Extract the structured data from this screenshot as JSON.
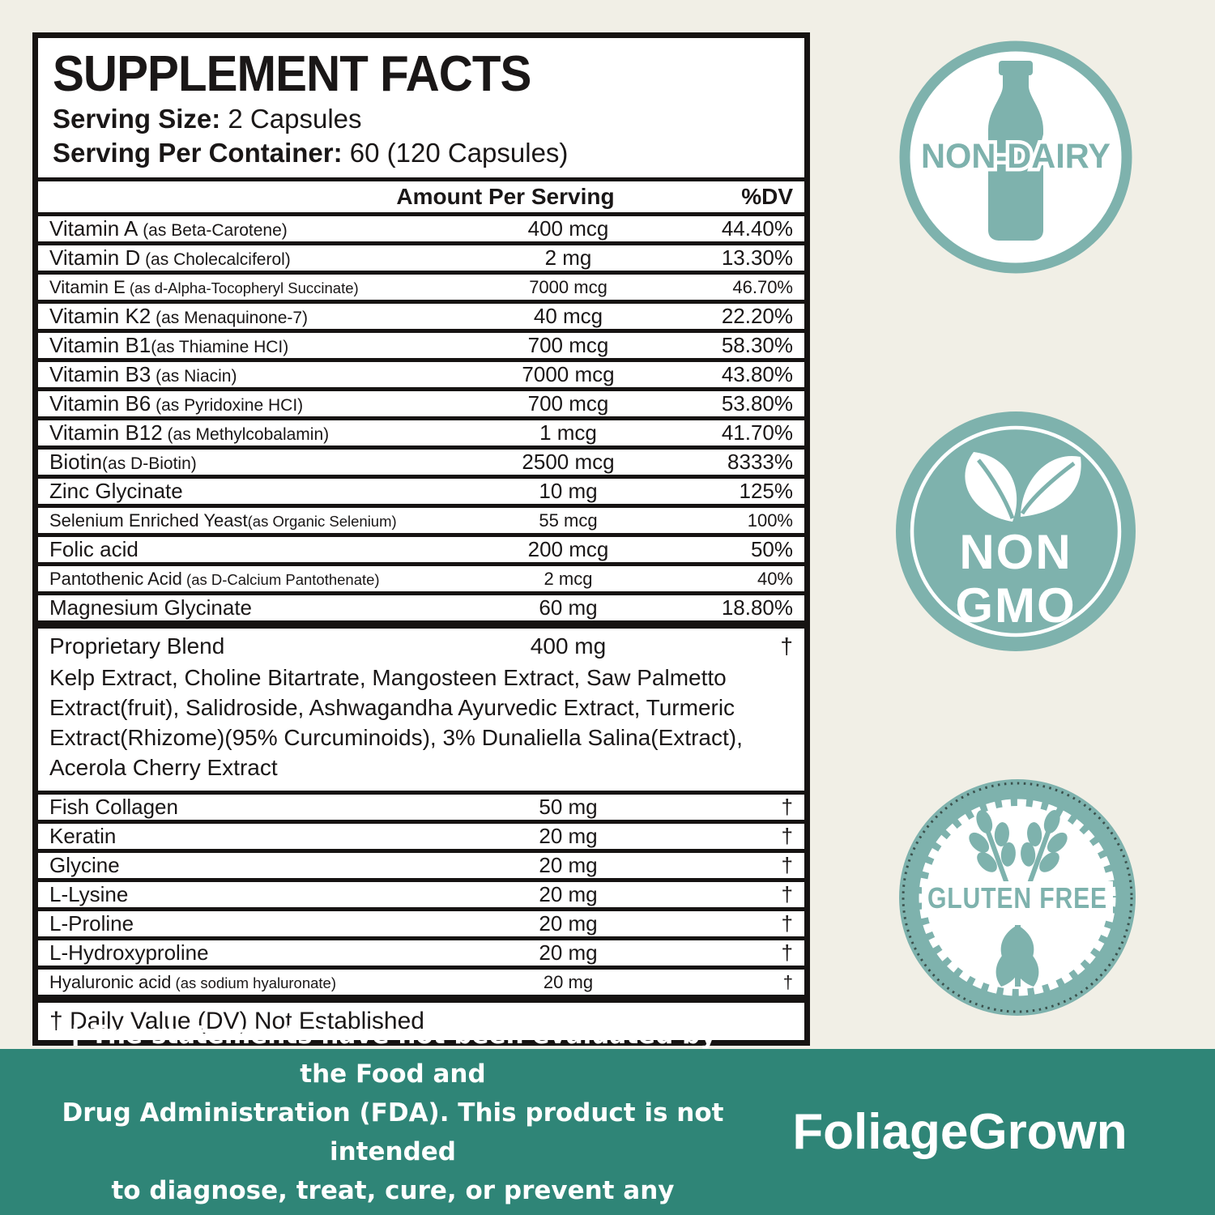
{
  "label": {
    "title": "SUPPLEMENT FACTS",
    "serving_size_label": "Serving Size:",
    "serving_size_value": "2 Capsules",
    "serving_container_label": "Serving Per Container:",
    "serving_container_value": "60 (120 Capsules)",
    "columns": {
      "amount": "Amount Per Serving",
      "dv": "%DV"
    },
    "rows": [
      {
        "name": "Vitamin A",
        "note": " (as Beta-Carotene)",
        "amount": "400 mcg",
        "dv": "44.40%"
      },
      {
        "name": "Vitamin D",
        "note": " (as Cholecalciferol)",
        "amount": "2 mg",
        "dv": "13.30%"
      },
      {
        "name": "Vitamin E",
        "note": " (as d-Alpha-Tocopheryl Succinate)",
        "amount": "7000 mcg",
        "dv": "46.70%"
      },
      {
        "name": "Vitamin K2",
        "note": " (as Menaquinone-7)",
        "amount": "40 mcg",
        "dv": "22.20%"
      },
      {
        "name": "Vitamin B1",
        "note": "(as Thiamine HCI)",
        "amount": "700 mcg",
        "dv": "58.30%"
      },
      {
        "name": "Vitamin B3",
        "note": " (as Niacin)",
        "amount": "7000 mcg",
        "dv": "43.80%"
      },
      {
        "name": "Vitamin B6",
        "note": " (as Pyridoxine HCI)",
        "amount": "700 mcg",
        "dv": "53.80%"
      },
      {
        "name": "Vitamin B12",
        "note": " (as Methylcobalamin)",
        "amount": "1 mcg",
        "dv": "41.70%"
      },
      {
        "name": "Biotin",
        "note": "(as D-Biotin)",
        "amount": "2500 mcg",
        "dv": "8333%"
      },
      {
        "name": "Zinc Glycinate",
        "note": "",
        "amount": "10 mg",
        "dv": "125%"
      },
      {
        "name": "Selenium Enriched Yeast",
        "note": "(as Organic Selenium)",
        "amount": "55 mcg",
        "dv": "100%"
      },
      {
        "name": "Folic acid",
        "note": "",
        "amount": "200 mcg",
        "dv": "50%"
      },
      {
        "name": "Pantothenic Acid",
        "note": " (as D-Calcium Pantothenate)",
        "amount": "2 mcg",
        "dv": "40%"
      },
      {
        "name": "Magnesium Glycinate",
        "note": "",
        "amount": "60 mg",
        "dv": "18.80%"
      }
    ],
    "blend": {
      "name": "Proprietary Blend",
      "amount": "400 mg",
      "dv": "†",
      "ingredients": "Kelp Extract, Choline Bitartrate, Mangosteen Extract, Saw Palmetto Extract(fruit), Salidroside, Ashwagandha Ayurvedic Extract, Turmeric Extract(Rhizome)(95% Curcuminoids), 3% Dunaliella Salina(Extract), Acerola Cherry Extract"
    },
    "rows2": [
      {
        "name": "Fish Collagen",
        "note": "",
        "amount": "50 mg",
        "dv": "†"
      },
      {
        "name": "Keratin",
        "note": "",
        "amount": "20 mg",
        "dv": "†"
      },
      {
        "name": "Glycine",
        "note": "",
        "amount": "20 mg",
        "dv": "†"
      },
      {
        "name": "L-Lysine",
        "note": "",
        "amount": "20 mg",
        "dv": "†"
      },
      {
        "name": "L-Proline",
        "note": "",
        "amount": "20 mg",
        "dv": "†"
      },
      {
        "name": "L-Hydroxyproline",
        "note": "",
        "amount": "20 mg",
        "dv": "†"
      },
      {
        "name": "Hyaluronic acid",
        "note": " (as sodium hyaluronate)",
        "amount": "20 mg",
        "dv": "†"
      }
    ],
    "footnote": "† Daily Value (DV) Not Established"
  },
  "badges": {
    "non_dairy": {
      "label": "NON-DAIRY"
    },
    "non_gmo": {
      "line1": "NON",
      "line2": "GMO"
    },
    "gluten_free": {
      "label": "GLUTEN FREE"
    }
  },
  "footer": {
    "disclaimer_lines": [
      "† The statements have not been evaluated by the Food and",
      "Drug Administration (FDA). This product is not intended",
      "to diagnose, treat, cure, or prevent any disease."
    ],
    "brand": "FoliageGrown"
  },
  "colors": {
    "badge_teal": "#7EB2AD",
    "footer_green": "#2F8577",
    "background": "#F1EFE6",
    "ink": "#1A1717"
  }
}
